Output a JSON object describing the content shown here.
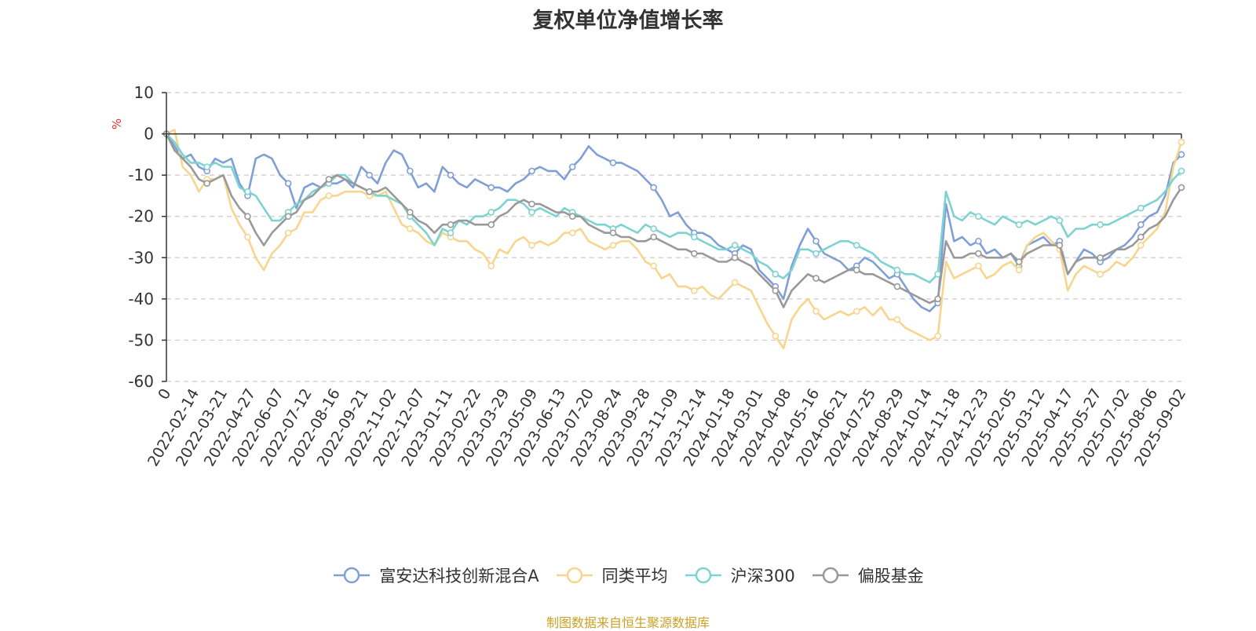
{
  "chart_data": {
    "type": "line",
    "title": "复权单位净值增长率",
    "ylabel": "%",
    "ylim": [
      -60,
      10
    ],
    "yticks": [
      10,
      0,
      -10,
      -20,
      -30,
      -40,
      -50,
      -60
    ],
    "grid": "horizontal dashed",
    "legend_position": "bottom",
    "x_ticks": [
      "0",
      "2022-02-14",
      "2022-03-21",
      "2022-04-27",
      "2022-06-07",
      "2022-07-12",
      "2022-08-16",
      "2022-09-21",
      "2022-11-02",
      "2022-12-07",
      "2023-01-11",
      "2023-02-22",
      "2023-03-29",
      "2023-05-09",
      "2023-06-13",
      "2023-07-20",
      "2023-08-24",
      "2023-09-28",
      "2023-11-09",
      "2023-12-14",
      "2024-01-18",
      "2024-03-01",
      "2024-04-08",
      "2024-05-16",
      "2024-06-21",
      "2024-07-25",
      "2024-08-29",
      "2024-10-14",
      "2024-11-18",
      "2024-12-23",
      "2025-02-05",
      "2025-03-12",
      "2025-04-17",
      "2025-05-27",
      "2025-07-02",
      "2025-08-06",
      "2025-09-02"
    ],
    "series": [
      {
        "name": "富安达科技创新混合A",
        "color": "#7f9fd5",
        "values": [
          0,
          -3,
          -6,
          -5,
          -8,
          -9,
          -6,
          -7,
          -6,
          -12,
          -15,
          -6,
          -5,
          -6,
          -10,
          -12,
          -18,
          -13,
          -12,
          -13,
          -12,
          -12,
          -11,
          -13,
          -8,
          -10,
          -12,
          -7,
          -4,
          -5,
          -9,
          -13,
          -12,
          -14,
          -8,
          -10,
          -12,
          -13,
          -11,
          -12,
          -13,
          -13,
          -14,
          -12,
          -11,
          -9,
          -8,
          -9,
          -9,
          -11,
          -8,
          -6,
          -3,
          -5,
          -6,
          -7,
          -7,
          -8,
          -9,
          -11,
          -13,
          -16,
          -20,
          -19,
          -22,
          -24,
          -24,
          -25,
          -27,
          -28,
          -29,
          -27,
          -28,
          -33,
          -35,
          -37,
          -40,
          -32,
          -27,
          -23,
          -26,
          -29,
          -30,
          -31,
          -33,
          -32,
          -30,
          -31,
          -33,
          -35,
          -34,
          -37,
          -40,
          -42,
          -43,
          -41,
          -17,
          -26,
          -25,
          -27,
          -26,
          -29,
          -28,
          -30,
          -29,
          -32,
          -27,
          -26,
          -25,
          -27,
          -26,
          -34,
          -31,
          -28,
          -29,
          -31,
          -30,
          -28,
          -27,
          -25,
          -22,
          -20,
          -19,
          -15,
          -7,
          -5
        ]
      },
      {
        "name": "同类平均",
        "color": "#f8d58f",
        "values": [
          0,
          1,
          -8,
          -10,
          -14,
          -11,
          -11,
          -10,
          -18,
          -22,
          -25,
          -30,
          -33,
          -29,
          -27,
          -24,
          -23,
          -19,
          -19,
          -16,
          -15,
          -15,
          -14,
          -14,
          -14,
          -15,
          -15,
          -14,
          -18,
          -22,
          -23,
          -24,
          -26,
          -27,
          -24,
          -25,
          -26,
          -26,
          -28,
          -29,
          -32,
          -28,
          -29,
          -26,
          -25,
          -27,
          -26,
          -27,
          -26,
          -24,
          -24,
          -23,
          -26,
          -27,
          -28,
          -27,
          -26,
          -26,
          -28,
          -31,
          -32,
          -35,
          -34,
          -37,
          -37,
          -38,
          -37,
          -39,
          -40,
          -38,
          -36,
          -37,
          -38,
          -42,
          -46,
          -49,
          -52,
          -45,
          -42,
          -40,
          -43,
          -45,
          -44,
          -43,
          -44,
          -43,
          -42,
          -44,
          -42,
          -45,
          -45,
          -47,
          -48,
          -49,
          -50,
          -49,
          -31,
          -35,
          -34,
          -33,
          -32,
          -35,
          -34,
          -32,
          -31,
          -33,
          -27,
          -25,
          -24,
          -26,
          -28,
          -38,
          -34,
          -32,
          -33,
          -34,
          -33,
          -31,
          -32,
          -30,
          -27,
          -25,
          -23,
          -19,
          -8,
          -2
        ]
      },
      {
        "name": "沪深300",
        "color": "#7dd3d1",
        "values": [
          0,
          -2,
          -5,
          -7,
          -7,
          -8,
          -7,
          -8,
          -8,
          -13,
          -14,
          -15,
          -18,
          -21,
          -21,
          -19,
          -17,
          -16,
          -14,
          -13,
          -12,
          -10,
          -10,
          -12,
          -13,
          -14,
          -15,
          -15,
          -16,
          -17,
          -20,
          -22,
          -24,
          -27,
          -23,
          -24,
          -21,
          -22,
          -20,
          -20,
          -19,
          -18,
          -16,
          -16,
          -17,
          -19,
          -18,
          -19,
          -20,
          -18,
          -19,
          -20,
          -21,
          -22,
          -22,
          -23,
          -22,
          -23,
          -24,
          -22,
          -23,
          -24,
          -25,
          -24,
          -24,
          -25,
          -26,
          -27,
          -28,
          -28,
          -27,
          -28,
          -29,
          -31,
          -32,
          -34,
          -35,
          -33,
          -28,
          -28,
          -29,
          -28,
          -27,
          -26,
          -26,
          -27,
          -28,
          -29,
          -31,
          -32,
          -33,
          -34,
          -34,
          -35,
          -36,
          -34,
          -14,
          -20,
          -21,
          -19,
          -20,
          -21,
          -22,
          -20,
          -21,
          -22,
          -21,
          -22,
          -21,
          -20,
          -21,
          -25,
          -23,
          -23,
          -22,
          -22,
          -22,
          -21,
          -20,
          -19,
          -18,
          -17,
          -16,
          -14,
          -11,
          -9
        ]
      },
      {
        "name": "偏股基金",
        "color": "#999999",
        "values": [
          0,
          -4,
          -6,
          -8,
          -11,
          -12,
          -11,
          -10,
          -15,
          -18,
          -20,
          -24,
          -27,
          -24,
          -22,
          -20,
          -19,
          -16,
          -15,
          -13,
          -11,
          -10,
          -11,
          -12,
          -13,
          -14,
          -14,
          -13,
          -15,
          -17,
          -19,
          -21,
          -22,
          -24,
          -22,
          -22,
          -21,
          -21,
          -22,
          -22,
          -22,
          -20,
          -19,
          -17,
          -16,
          -17,
          -17,
          -18,
          -19,
          -19,
          -20,
          -20,
          -22,
          -23,
          -24,
          -24,
          -25,
          -25,
          -26,
          -26,
          -25,
          -26,
          -27,
          -28,
          -28,
          -29,
          -29,
          -30,
          -31,
          -31,
          -30,
          -31,
          -32,
          -34,
          -36,
          -38,
          -42,
          -38,
          -36,
          -34,
          -35,
          -36,
          -35,
          -34,
          -33,
          -33,
          -34,
          -34,
          -35,
          -36,
          -37,
          -38,
          -39,
          -40,
          -41,
          -40,
          -26,
          -30,
          -30,
          -29,
          -29,
          -30,
          -30,
          -30,
          -29,
          -31,
          -29,
          -28,
          -27,
          -27,
          -27,
          -34,
          -31,
          -30,
          -30,
          -30,
          -29,
          -28,
          -28,
          -27,
          -25,
          -23,
          -22,
          -20,
          -16,
          -13
        ]
      }
    ],
    "source_note": "制图数据来自恒生聚源数据库"
  }
}
